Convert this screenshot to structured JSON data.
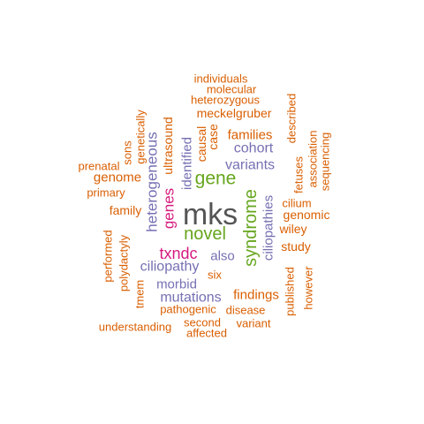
{
  "colors": {
    "dark": "#555555",
    "green": "#66a61e",
    "magenta": "#d6197f",
    "purple": "#7570b3",
    "orange": "#d95f02"
  },
  "words": [
    {
      "text": "mks",
      "color": "dark"
    },
    {
      "text": "syndrome",
      "color": "green"
    },
    {
      "text": "gene",
      "color": "green"
    },
    {
      "text": "novel",
      "color": "green"
    },
    {
      "text": "genes",
      "color": "magenta"
    },
    {
      "text": "txndc",
      "color": "magenta"
    },
    {
      "text": "heterogeneous",
      "color": "purple"
    },
    {
      "text": "identified",
      "color": "purple"
    },
    {
      "text": "cohort",
      "color": "purple"
    },
    {
      "text": "variants",
      "color": "purple"
    },
    {
      "text": "ciliopathies",
      "color": "purple"
    },
    {
      "text": "also",
      "color": "purple"
    },
    {
      "text": "ciliopathy",
      "color": "purple"
    },
    {
      "text": "morbid",
      "color": "purple"
    },
    {
      "text": "mutations",
      "color": "purple"
    },
    {
      "text": "individuals",
      "color": "orange"
    },
    {
      "text": "molecular",
      "color": "orange"
    },
    {
      "text": "heterozygous",
      "color": "orange"
    },
    {
      "text": "meckelgruber",
      "color": "orange"
    },
    {
      "text": "genetically",
      "color": "orange"
    },
    {
      "text": "ultrasound",
      "color": "orange"
    },
    {
      "text": "described",
      "color": "orange"
    },
    {
      "text": "causal",
      "color": "orange"
    },
    {
      "text": "case",
      "color": "orange"
    },
    {
      "text": "families",
      "color": "orange"
    },
    {
      "text": "sons",
      "color": "orange"
    },
    {
      "text": "association",
      "color": "orange"
    },
    {
      "text": "sequencing",
      "color": "orange"
    },
    {
      "text": "fetuses",
      "color": "orange"
    },
    {
      "text": "prenatal",
      "color": "orange"
    },
    {
      "text": "genome",
      "color": "orange"
    },
    {
      "text": "primary",
      "color": "orange"
    },
    {
      "text": "cilium",
      "color": "orange"
    },
    {
      "text": "family",
      "color": "orange"
    },
    {
      "text": "genomic",
      "color": "orange"
    },
    {
      "text": "wiley",
      "color": "orange"
    },
    {
      "text": "performed",
      "color": "orange"
    },
    {
      "text": "study",
      "color": "orange"
    },
    {
      "text": "polydactyly",
      "color": "orange"
    },
    {
      "text": "six",
      "color": "orange"
    },
    {
      "text": "however",
      "color": "orange"
    },
    {
      "text": "findings",
      "color": "orange"
    },
    {
      "text": "tmem",
      "color": "orange"
    },
    {
      "text": "published",
      "color": "orange"
    },
    {
      "text": "pathogenic",
      "color": "orange"
    },
    {
      "text": "disease",
      "color": "orange"
    },
    {
      "text": "second",
      "color": "orange"
    },
    {
      "text": "understanding",
      "color": "orange"
    },
    {
      "text": "variant",
      "color": "orange"
    },
    {
      "text": "affected",
      "color": "orange"
    }
  ]
}
